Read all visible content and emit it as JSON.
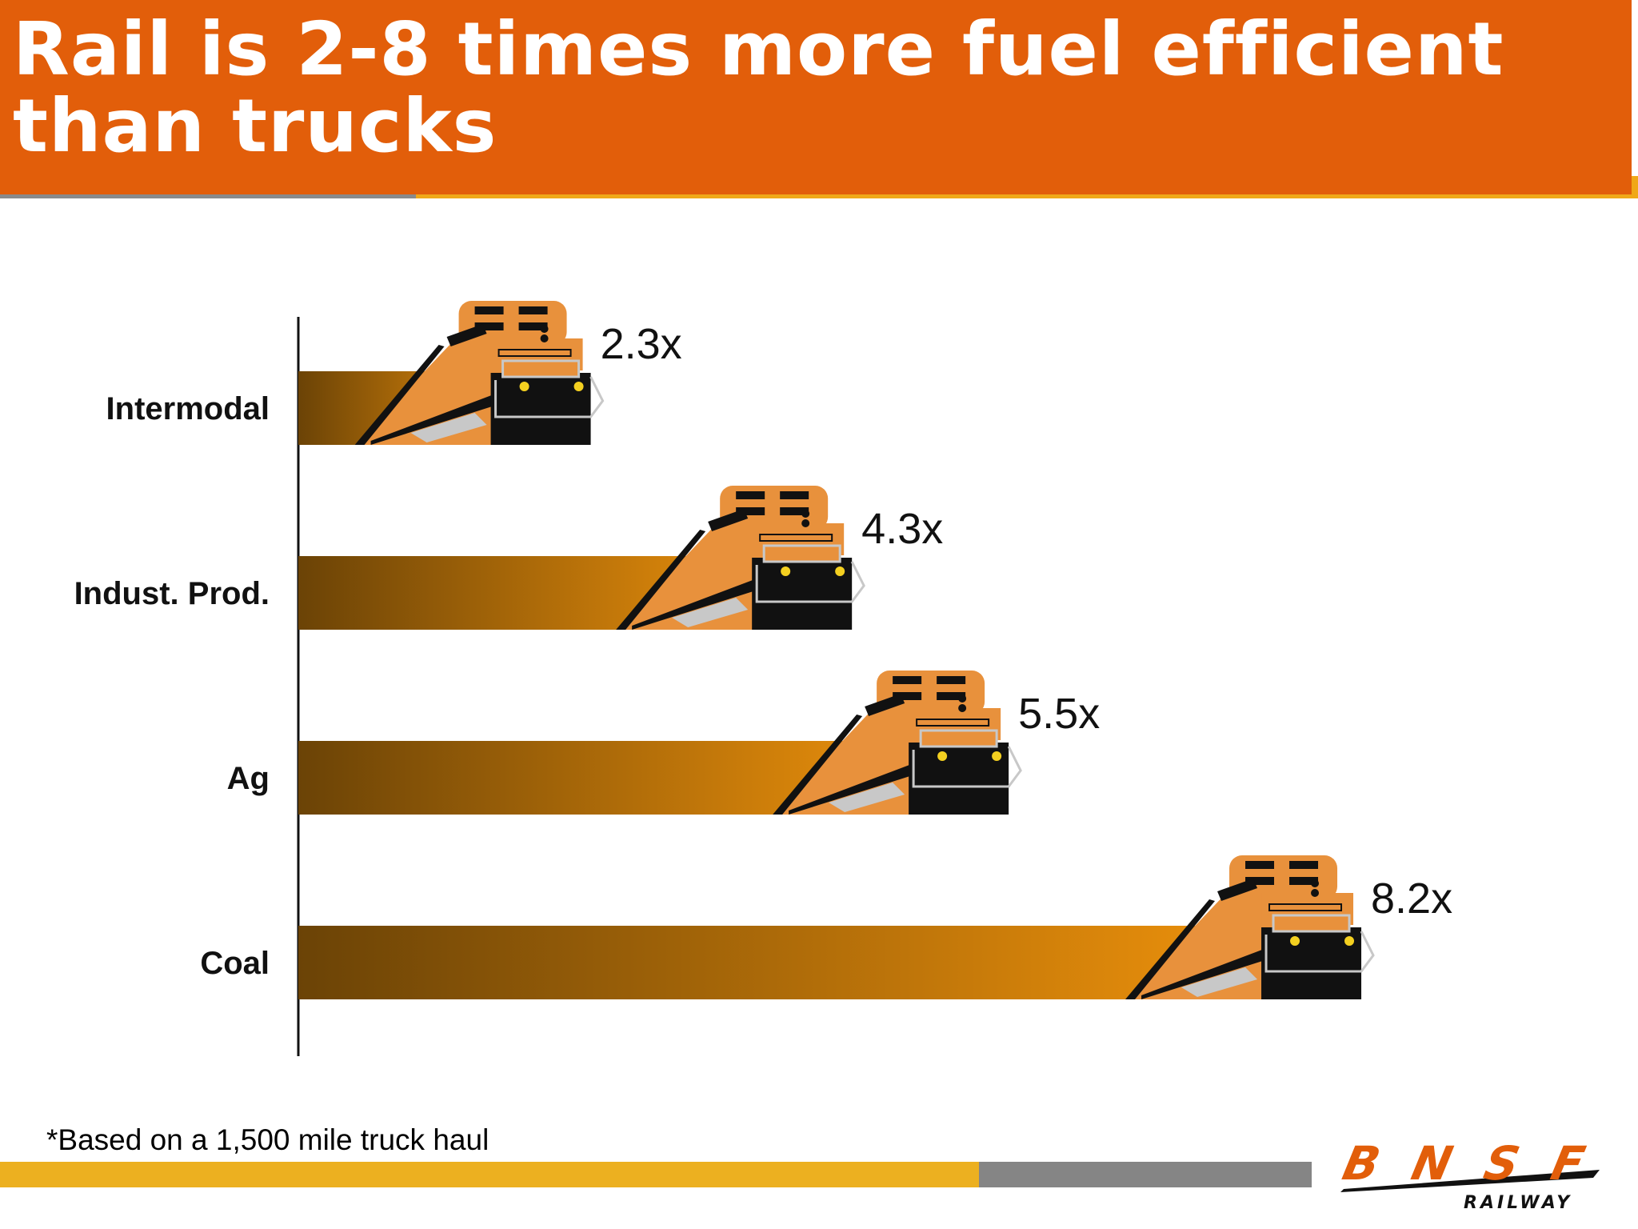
{
  "header": {
    "title": "Rail is 2-8 times more fuel efficient than trucks"
  },
  "chart_data": {
    "type": "bar",
    "orientation": "horizontal",
    "categories": [
      "Intermodal",
      "Indust. Prod.",
      "Ag",
      "Coal"
    ],
    "values": [
      2.3,
      4.3,
      5.5,
      8.2
    ],
    "value_labels": [
      "2.3x",
      "4.3x",
      "5.5x",
      "8.2x"
    ],
    "title": "Rail is 2-8 times more fuel efficient than trucks",
    "xlabel": "",
    "ylabel": "",
    "grid": false,
    "bar_gradient": [
      "#6b4306",
      "#f5960c"
    ]
  },
  "footer": {
    "note": "*Based on a 1,500 mile truck haul"
  },
  "logo": {
    "brand": "BNSF",
    "sub": "RAILWAY"
  },
  "colors": {
    "header_bg": "#e25e0a",
    "locomotive_orange": "#e8913c",
    "logo_orange": "#e25e0a"
  }
}
